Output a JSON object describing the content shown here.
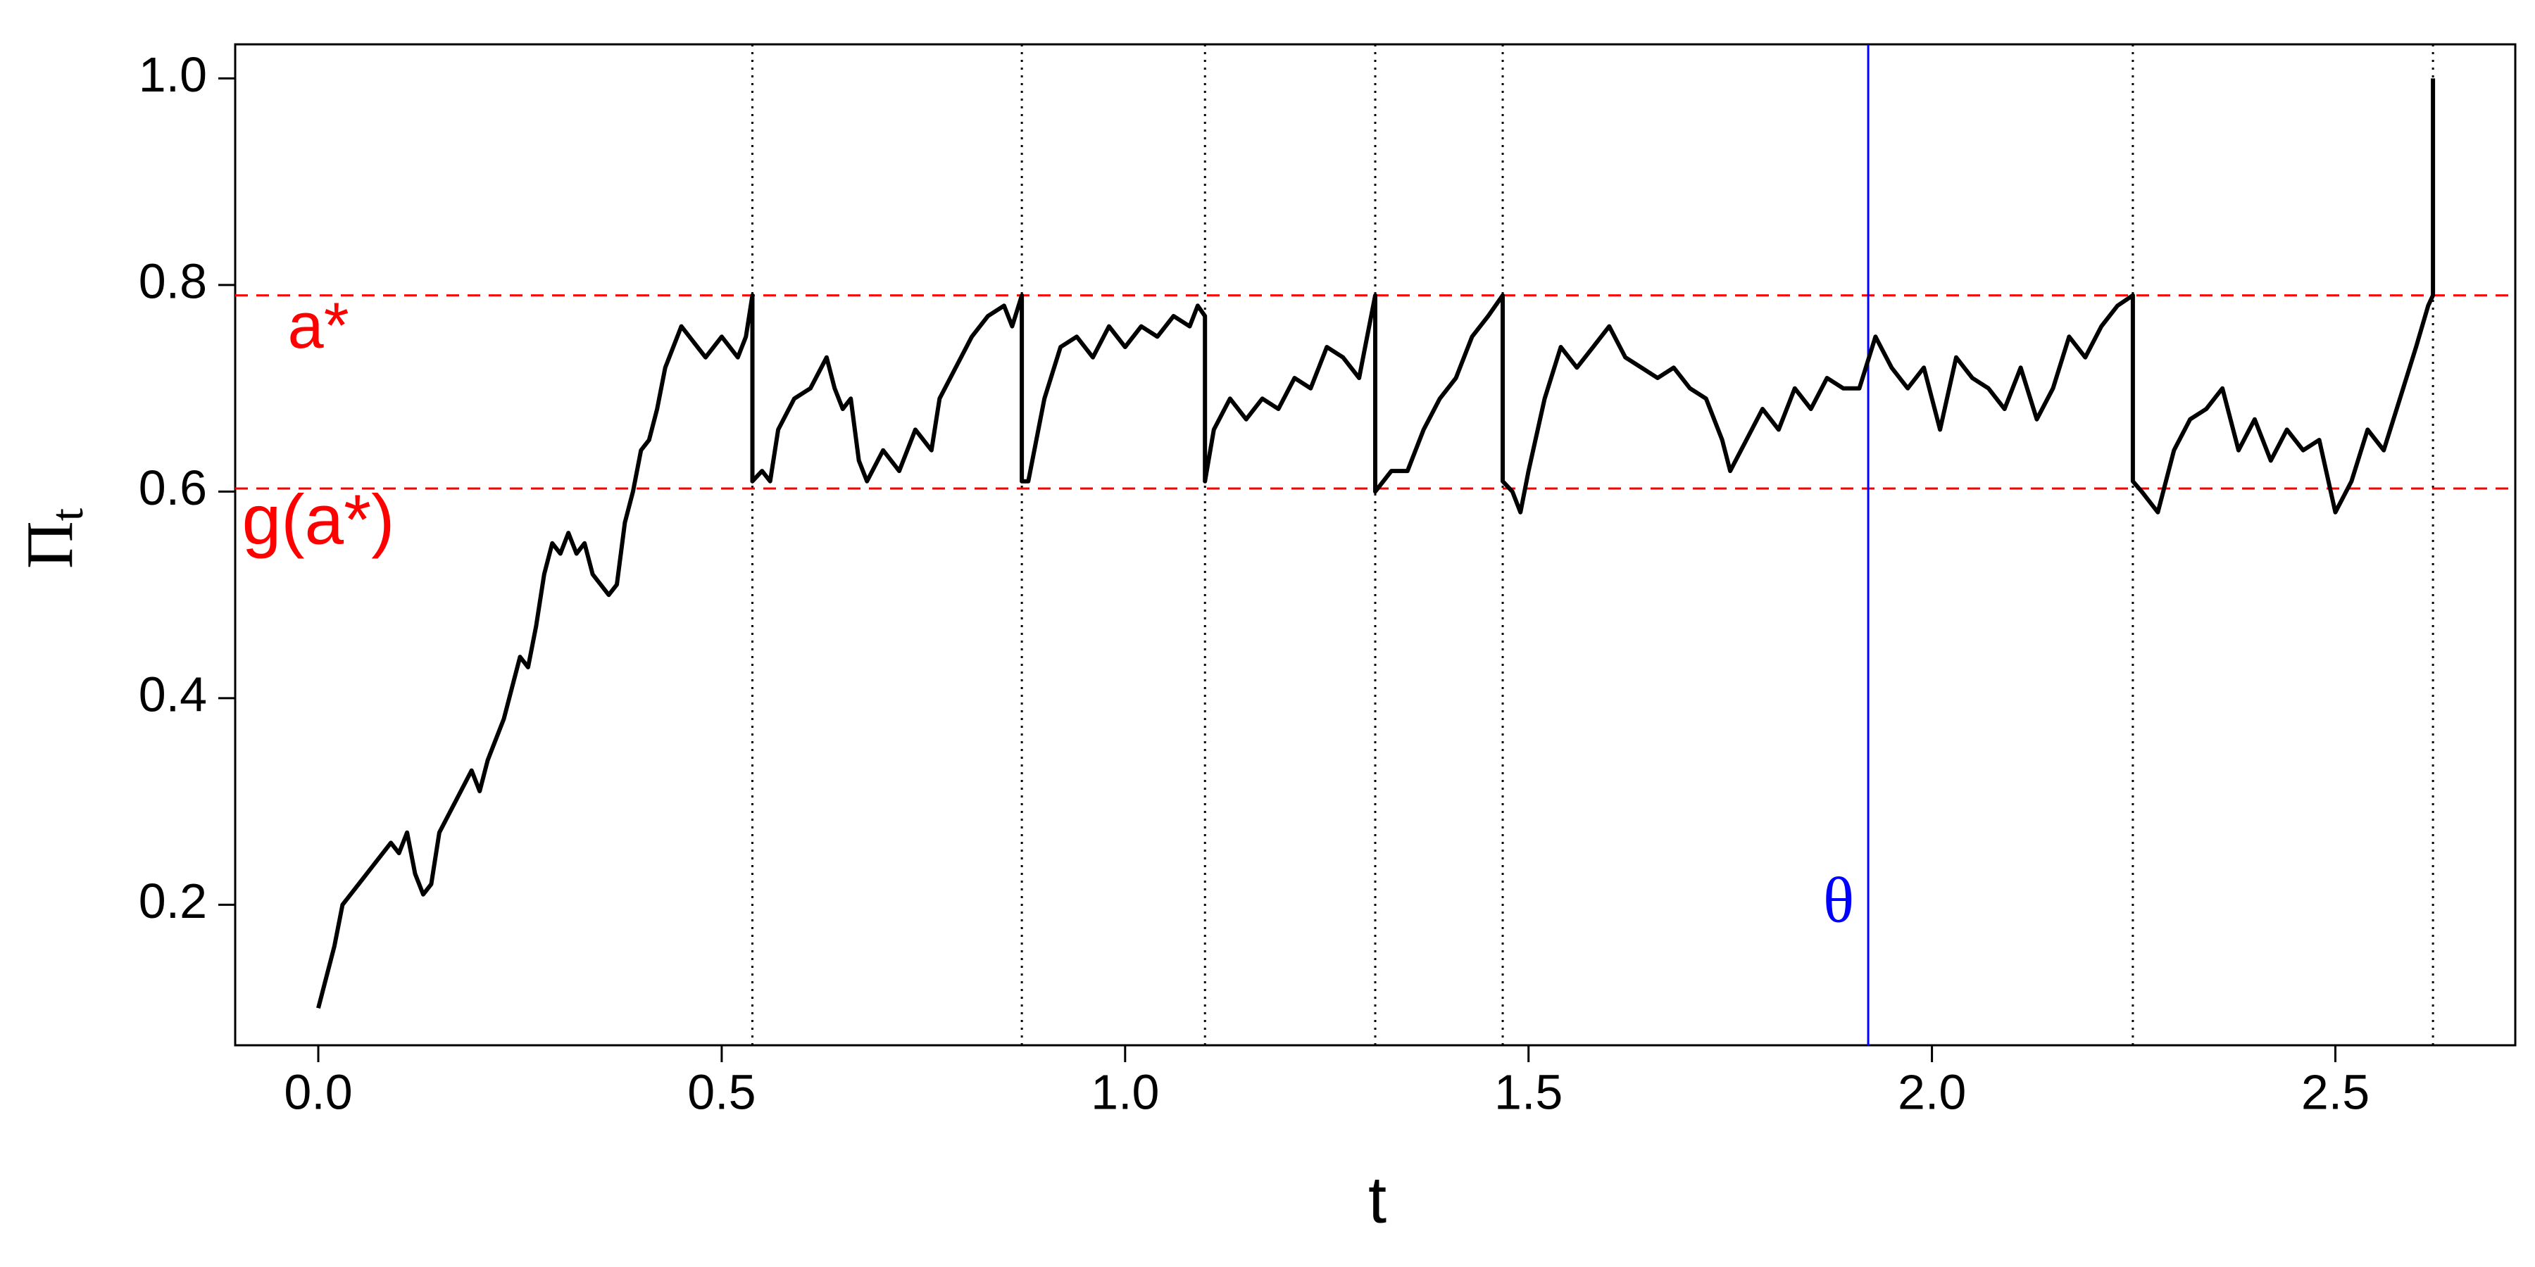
{
  "chart_data": {
    "type": "line",
    "xlabel": "t",
    "ylabel": "Π",
    "ylabel_subscript": "t",
    "xlim": [
      -0.103,
      2.723
    ],
    "ylim": [
      0.064,
      1.033
    ],
    "xticks": [
      {
        "value": 0,
        "label": "0.0"
      },
      0.5,
      {
        "value": 1,
        "label": "1.0"
      },
      1.5,
      {
        "value": 2,
        "label": "2.0"
      },
      2.5
    ],
    "yticks": [
      0.2,
      0.4,
      0.6,
      0.8,
      {
        "value": 1,
        "label": "1.0"
      }
    ],
    "color": "#000000",
    "x": [
      0,
      0.02,
      0.03,
      0.05,
      0.07,
      0.09,
      0.1,
      0.11,
      0.12,
      0.13,
      0.14,
      0.15,
      0.17,
      0.19,
      0.2,
      0.21,
      0.23,
      0.24,
      0.25,
      0.26,
      0.27,
      0.28,
      0.29,
      0.3,
      0.31,
      0.32,
      0.33,
      0.34,
      0.36,
      0.37,
      0.38,
      0.39,
      0.4,
      0.41,
      0.42,
      0.43,
      0.45,
      0.46,
      0.47,
      0.48,
      0.5,
      0.52,
      0.53,
      0.538,
      0.538,
      0.55,
      0.56,
      0.57,
      0.59,
      0.61,
      0.63,
      0.64,
      0.65,
      0.66,
      0.67,
      0.68,
      0.7,
      0.72,
      0.74,
      0.76,
      0.77,
      0.79,
      0.81,
      0.83,
      0.85,
      0.86,
      0.872,
      0.872,
      0.88,
      0.9,
      0.92,
      0.94,
      0.96,
      0.98,
      1.0,
      1.02,
      1.04,
      1.06,
      1.08,
      1.09,
      1.099,
      1.099,
      1.11,
      1.13,
      1.15,
      1.17,
      1.19,
      1.21,
      1.23,
      1.25,
      1.27,
      1.29,
      1.3,
      1.31,
      1.31,
      1.33,
      1.35,
      1.37,
      1.39,
      1.41,
      1.43,
      1.45,
      1.468,
      1.468,
      1.48,
      1.49,
      1.5,
      1.52,
      1.54,
      1.56,
      1.58,
      1.6,
      1.62,
      1.64,
      1.66,
      1.68,
      1.7,
      1.72,
      1.74,
      1.75,
      1.77,
      1.79,
      1.81,
      1.83,
      1.85,
      1.87,
      1.89,
      1.91,
      1.93,
      1.95,
      1.97,
      1.99,
      2.01,
      2.03,
      2.05,
      2.07,
      2.09,
      2.11,
      2.13,
      2.15,
      2.17,
      2.19,
      2.21,
      2.23,
      2.249,
      2.249,
      2.26,
      2.28,
      2.3,
      2.32,
      2.34,
      2.36,
      2.38,
      2.4,
      2.42,
      2.44,
      2.46,
      2.48,
      2.5,
      2.52,
      2.54,
      2.56,
      2.58,
      2.6,
      2.615,
      2.621,
      2.621
    ],
    "values": [
      0.1,
      0.16,
      0.2,
      0.22,
      0.24,
      0.26,
      0.25,
      0.27,
      0.23,
      0.21,
      0.22,
      0.27,
      0.3,
      0.33,
      0.31,
      0.34,
      0.38,
      0.41,
      0.44,
      0.43,
      0.47,
      0.52,
      0.55,
      0.54,
      0.56,
      0.54,
      0.55,
      0.52,
      0.5,
      0.51,
      0.57,
      0.6,
      0.64,
      0.65,
      0.68,
      0.72,
      0.76,
      0.75,
      0.74,
      0.73,
      0.75,
      0.73,
      0.75,
      0.79,
      0.61,
      0.62,
      0.61,
      0.66,
      0.69,
      0.7,
      0.73,
      0.7,
      0.68,
      0.69,
      0.63,
      0.61,
      0.64,
      0.62,
      0.66,
      0.64,
      0.69,
      0.72,
      0.75,
      0.77,
      0.78,
      0.76,
      0.79,
      0.61,
      0.61,
      0.69,
      0.74,
      0.75,
      0.73,
      0.76,
      0.74,
      0.76,
      0.75,
      0.77,
      0.76,
      0.78,
      0.77,
      0.61,
      0.66,
      0.69,
      0.67,
      0.69,
      0.68,
      0.71,
      0.7,
      0.74,
      0.73,
      0.71,
      0.75,
      0.79,
      0.6,
      0.62,
      0.62,
      0.66,
      0.69,
      0.71,
      0.75,
      0.77,
      0.79,
      0.61,
      0.6,
      0.58,
      0.62,
      0.69,
      0.74,
      0.72,
      0.74,
      0.76,
      0.73,
      0.72,
      0.71,
      0.72,
      0.7,
      0.69,
      0.65,
      0.62,
      0.65,
      0.68,
      0.66,
      0.7,
      0.68,
      0.71,
      0.7,
      0.7,
      0.75,
      0.72,
      0.7,
      0.72,
      0.66,
      0.73,
      0.71,
      0.7,
      0.68,
      0.72,
      0.67,
      0.7,
      0.75,
      0.73,
      0.76,
      0.78,
      0.79,
      0.61,
      0.6,
      0.58,
      0.64,
      0.67,
      0.68,
      0.7,
      0.64,
      0.67,
      0.63,
      0.66,
      0.64,
      0.65,
      0.58,
      0.61,
      0.66,
      0.64,
      0.69,
      0.74,
      0.78,
      0.79,
      1.0
    ],
    "hlines": [
      {
        "value": 0.79,
        "label": "a*",
        "color": "#ff0000"
      },
      {
        "value": 0.603,
        "label": "g(a*)",
        "color": "#ff0000"
      }
    ],
    "vlines": [
      0.538,
      0.872,
      1.099,
      1.31,
      1.468,
      2.249,
      2.621
    ],
    "theta": {
      "value": 1.921,
      "label": "θ",
      "color": "#0000ff"
    }
  }
}
